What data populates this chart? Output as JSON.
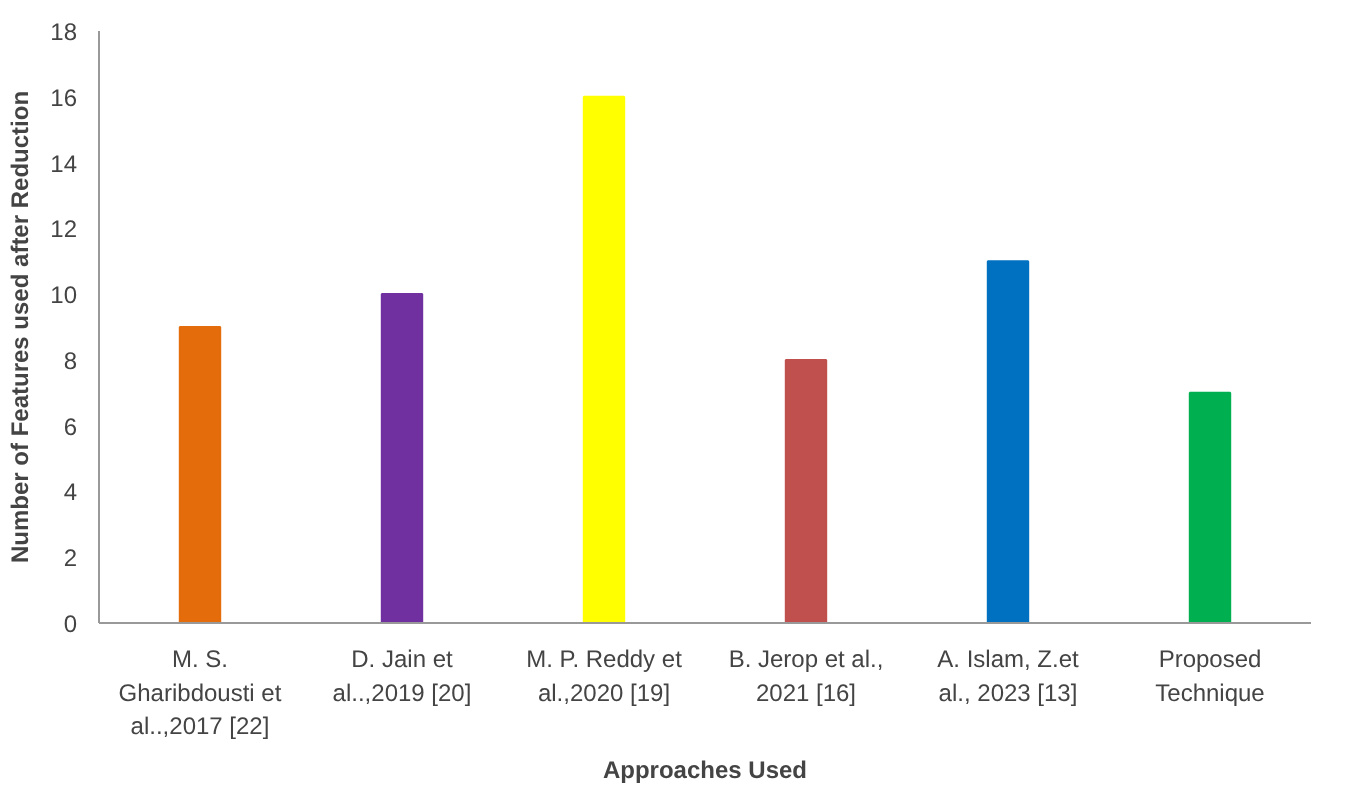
{
  "chart_data": {
    "type": "bar",
    "xlabel": "Approaches Used",
    "ylabel": "Number of Features used after Reduction",
    "categories": [
      "M. S. Gharibdousti et al..,2017 [22]",
      "D. Jain et al..,2019 [20]",
      "M. P. Reddy et al.,2020 [19]",
      "B. Jerop et al., 2021 [16]",
      "A. Islam, Z.et al., 2023 [13]",
      "Proposed Technique"
    ],
    "values": [
      9,
      10,
      16,
      8,
      11,
      7
    ],
    "colors": [
      "#e46c0a",
      "#7030a0",
      "#ffff00",
      "#c0504d",
      "#0070c0",
      "#00b050"
    ],
    "ylim": [
      0,
      18
    ],
    "yticks": [
      0,
      2,
      4,
      6,
      8,
      10,
      12,
      14,
      16,
      18
    ],
    "grid": false
  }
}
